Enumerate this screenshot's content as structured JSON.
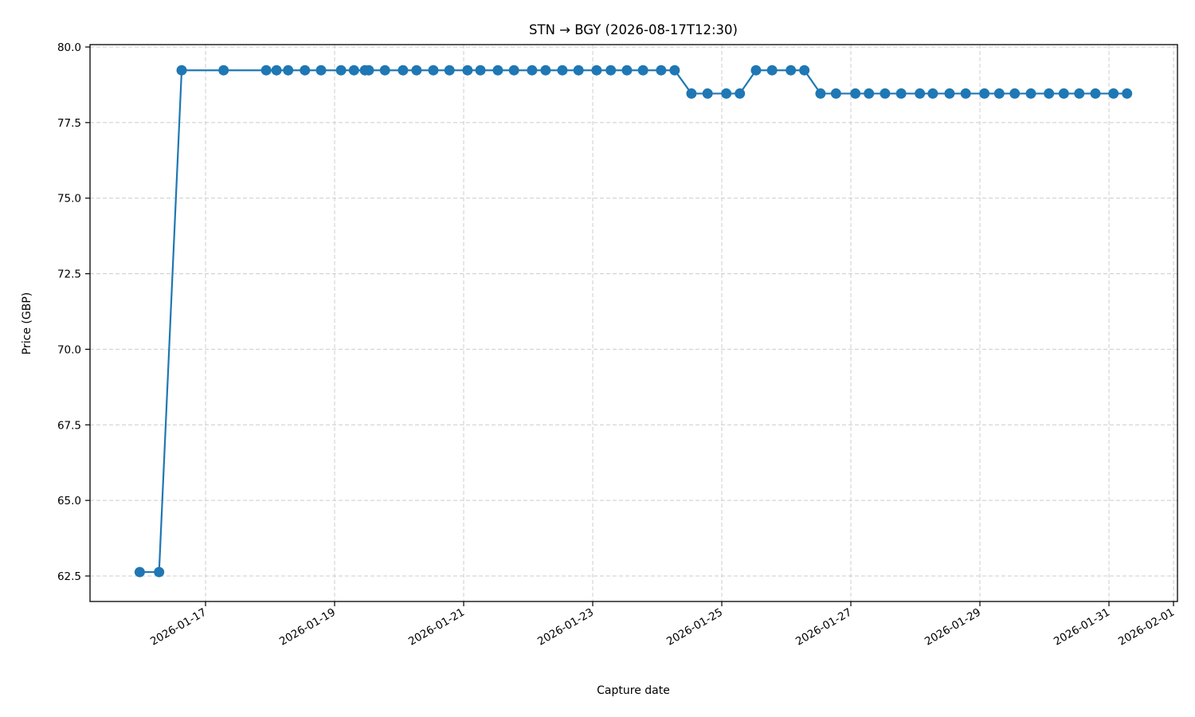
{
  "chart_data": {
    "type": "line",
    "title": "STN → BGY (2026-08-17T12:30)",
    "xlabel": "Capture date",
    "ylabel": "Price (GBP)",
    "ylim": [
      61.8,
      80.0
    ],
    "yticks": [
      "62.5",
      "65.0",
      "67.5",
      "70.0",
      "72.5",
      "75.0",
      "77.5",
      "80.0"
    ],
    "xticks": [
      "2026-01-17",
      "2026-01-19",
      "2026-01-21",
      "2026-01-23",
      "2026-01-25",
      "2026-01-27",
      "2026-01-29",
      "2026-01-31",
      "2026-02-01"
    ],
    "grid": true,
    "grid_style": "dashed",
    "legend": "none",
    "series_color": "#1f77b4",
    "series": [
      {
        "name": "Price",
        "marker": "circle",
        "x_days_from_2026_01_17": [
          -1.02,
          -0.72,
          -0.37,
          0.28,
          0.94,
          1.1,
          1.28,
          1.54,
          1.79,
          2.1,
          2.3,
          2.47,
          2.53,
          2.78,
          3.06,
          3.27,
          3.53,
          3.78,
          4.06,
          4.26,
          4.53,
          4.78,
          5.06,
          5.27,
          5.53,
          5.78,
          6.06,
          6.28,
          6.53,
          6.78,
          7.06,
          7.27,
          7.53,
          7.78,
          8.07,
          8.28,
          8.53,
          8.78,
          9.07,
          9.28,
          9.53,
          9.77,
          10.07,
          10.28,
          10.53,
          10.78,
          11.07,
          11.27,
          11.53,
          11.78,
          12.07,
          12.3,
          12.54,
          12.79,
          13.07,
          13.3,
          13.54,
          13.79,
          14.07,
          14.28
        ],
        "values": [
          62.63,
          62.63,
          79.23,
          79.23,
          79.23,
          79.23,
          79.23,
          79.23,
          79.23,
          79.23,
          79.23,
          79.23,
          79.23,
          79.23,
          79.23,
          79.23,
          79.23,
          79.23,
          79.23,
          79.23,
          79.23,
          79.23,
          79.23,
          79.23,
          79.23,
          79.23,
          79.23,
          79.23,
          79.23,
          79.23,
          79.23,
          79.23,
          78.46,
          78.46,
          78.46,
          78.46,
          79.23,
          79.23,
          79.23,
          79.23,
          78.46,
          78.46,
          78.46,
          78.46,
          78.46,
          78.46,
          78.46,
          78.46,
          78.46,
          78.46,
          78.46,
          78.46,
          78.46,
          78.46,
          78.46,
          78.46,
          78.46,
          78.46,
          78.46,
          78.46
        ]
      }
    ]
  }
}
